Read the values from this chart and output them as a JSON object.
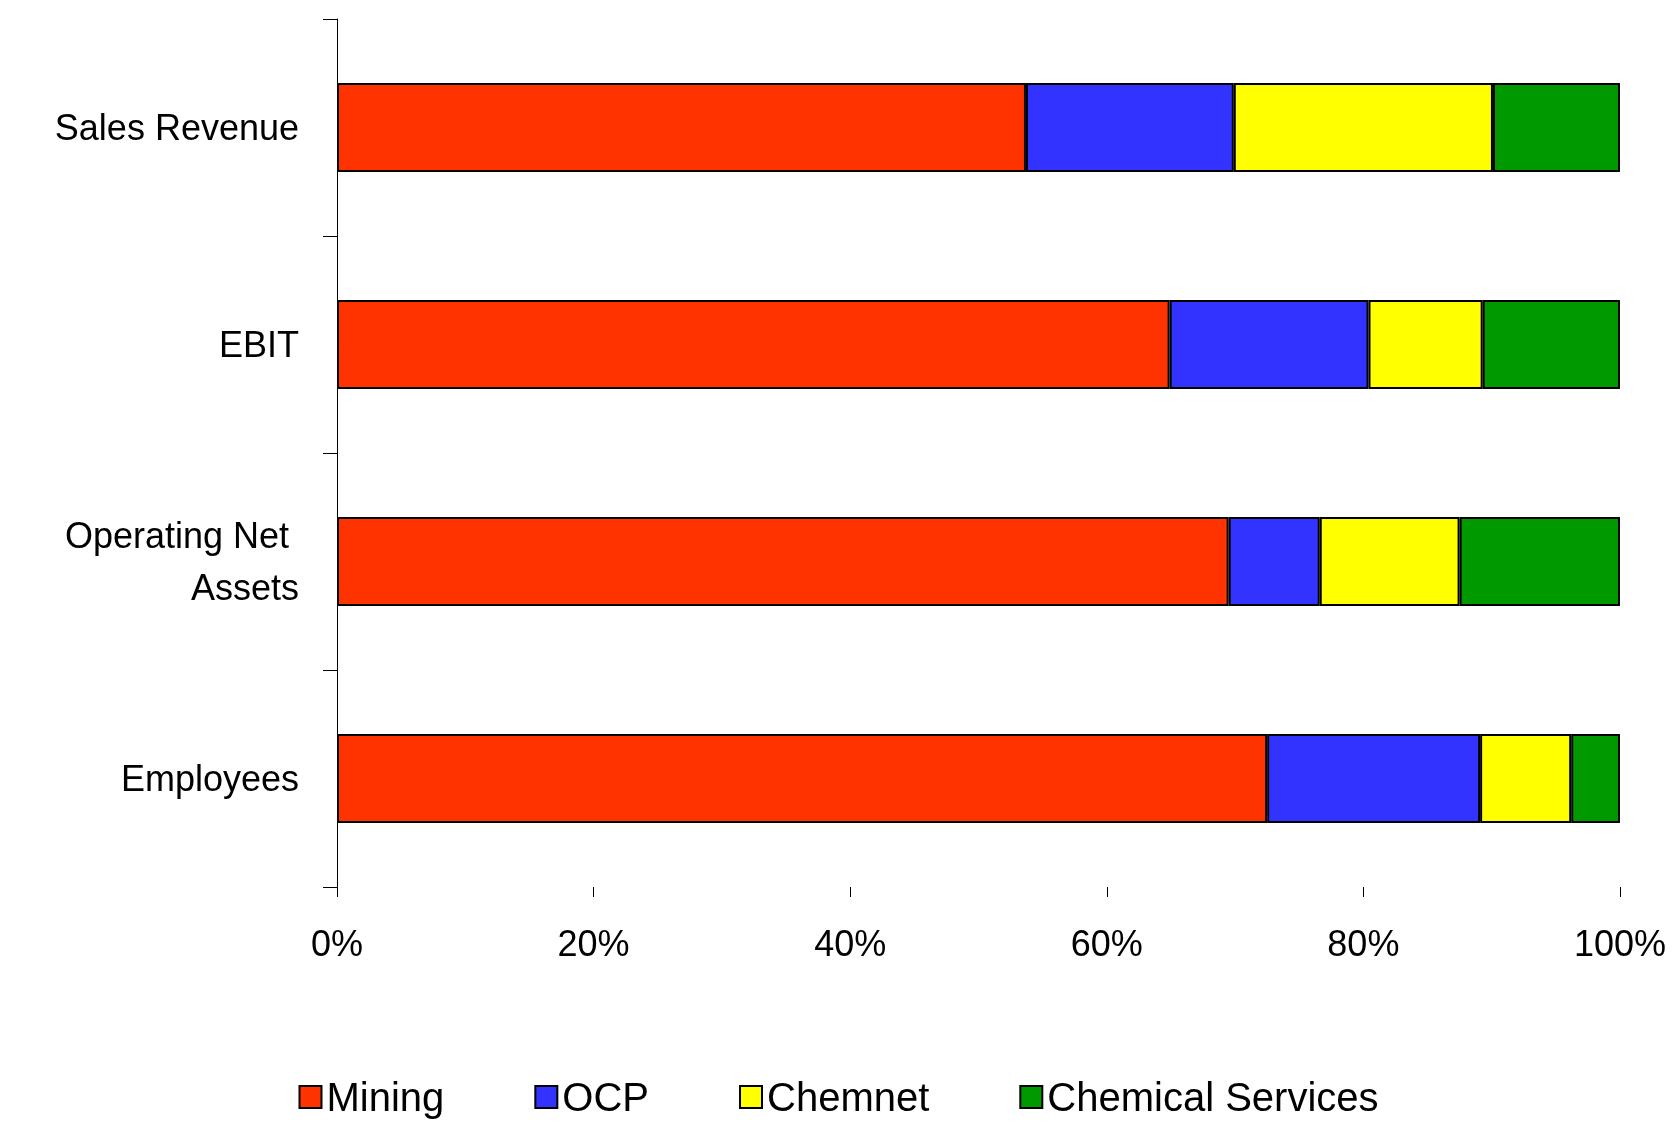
{
  "chart_data": {
    "type": "bar",
    "orientation": "horizontal",
    "stacked": true,
    "categories": [
      "Sales Revenue",
      "EBIT",
      "Operating Net Assets",
      "Employees"
    ],
    "series": [
      {
        "name": "Mining",
        "color": "#ff3300",
        "values": [
          53.7,
          64.9,
          69.5,
          72.5
        ]
      },
      {
        "name": "OCP",
        "color": "#3333ff",
        "values": [
          16.2,
          15.5,
          7.1,
          16.6
        ]
      },
      {
        "name": "Chemnet",
        "color": "#ffff00",
        "values": [
          20.2,
          8.9,
          10.9,
          7.1
        ]
      },
      {
        "name": "Chemical Services",
        "color": "#009900",
        "values": [
          9.9,
          10.7,
          12.5,
          3.8
        ]
      }
    ],
    "xlim": [
      0,
      100
    ],
    "xticks": [
      {
        "value": 0,
        "label": "0%"
      },
      {
        "value": 20,
        "label": "20%"
      },
      {
        "value": 40,
        "label": "40%"
      },
      {
        "value": 60,
        "label": "60%"
      },
      {
        "value": 80,
        "label": "80%"
      },
      {
        "value": 100,
        "label": "100%"
      }
    ],
    "legend": "bottom",
    "grid": false
  }
}
